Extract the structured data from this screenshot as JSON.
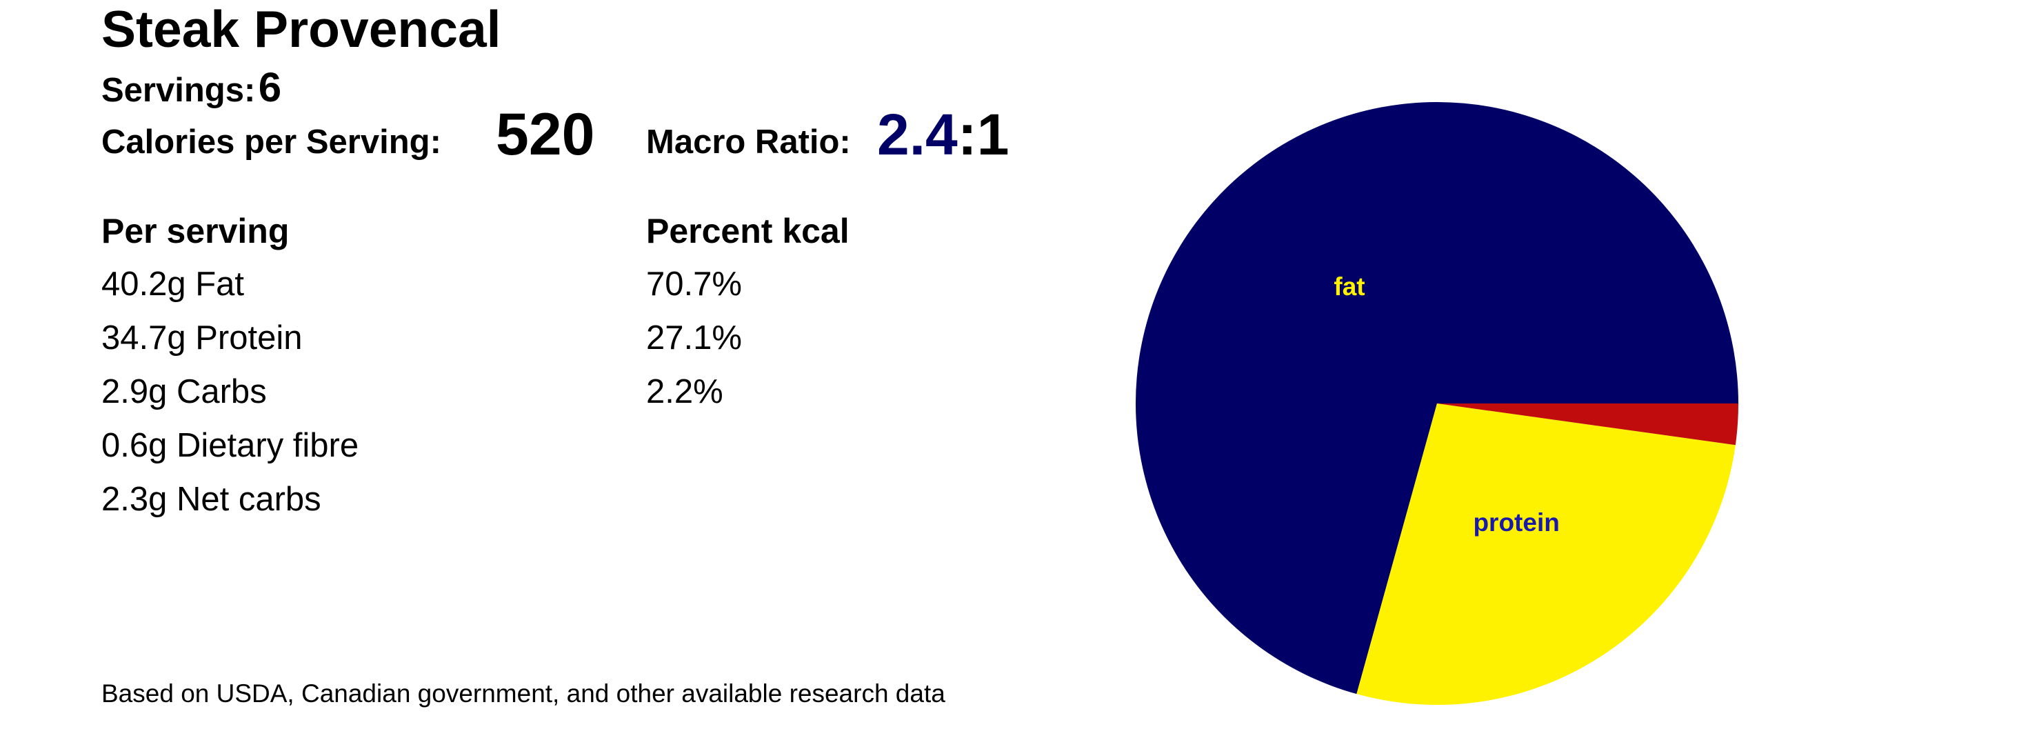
{
  "header": {
    "title": "Steak Provencal",
    "servings_label": "Servings:",
    "servings": 6,
    "calories_label": "Calories per Serving:",
    "calories": 520,
    "macro_label": "Macro Ratio:",
    "macro_ratio": 2.4,
    "macro_suffix": ":1"
  },
  "table": {
    "headers": [
      "Per serving",
      "Percent kcal"
    ],
    "rows": [
      [
        "40.2g Fat",
        "70.7%"
      ],
      [
        "34.7g Protein",
        "27.1%"
      ],
      [
        "2.9g Carbs",
        "2.2%"
      ],
      [
        "0.6g Dietary fibre"
      ],
      [
        "2.3g Net carbs"
      ]
    ]
  },
  "footer": "Based on USDA, Canadian government, and other available research data",
  "chart_data": {
    "type": "pie",
    "categories": [
      "fat",
      "protein",
      null
    ],
    "values": [
      70.7,
      27.1,
      2.2
    ],
    "colors": [
      "#000066",
      "#fff200",
      "#c00c0c"
    ],
    "label_colors": [
      "#fff200",
      "#1a1aaa",
      "#ffffff"
    ],
    "start_angle": 0,
    "direction": "counterclockwise"
  }
}
